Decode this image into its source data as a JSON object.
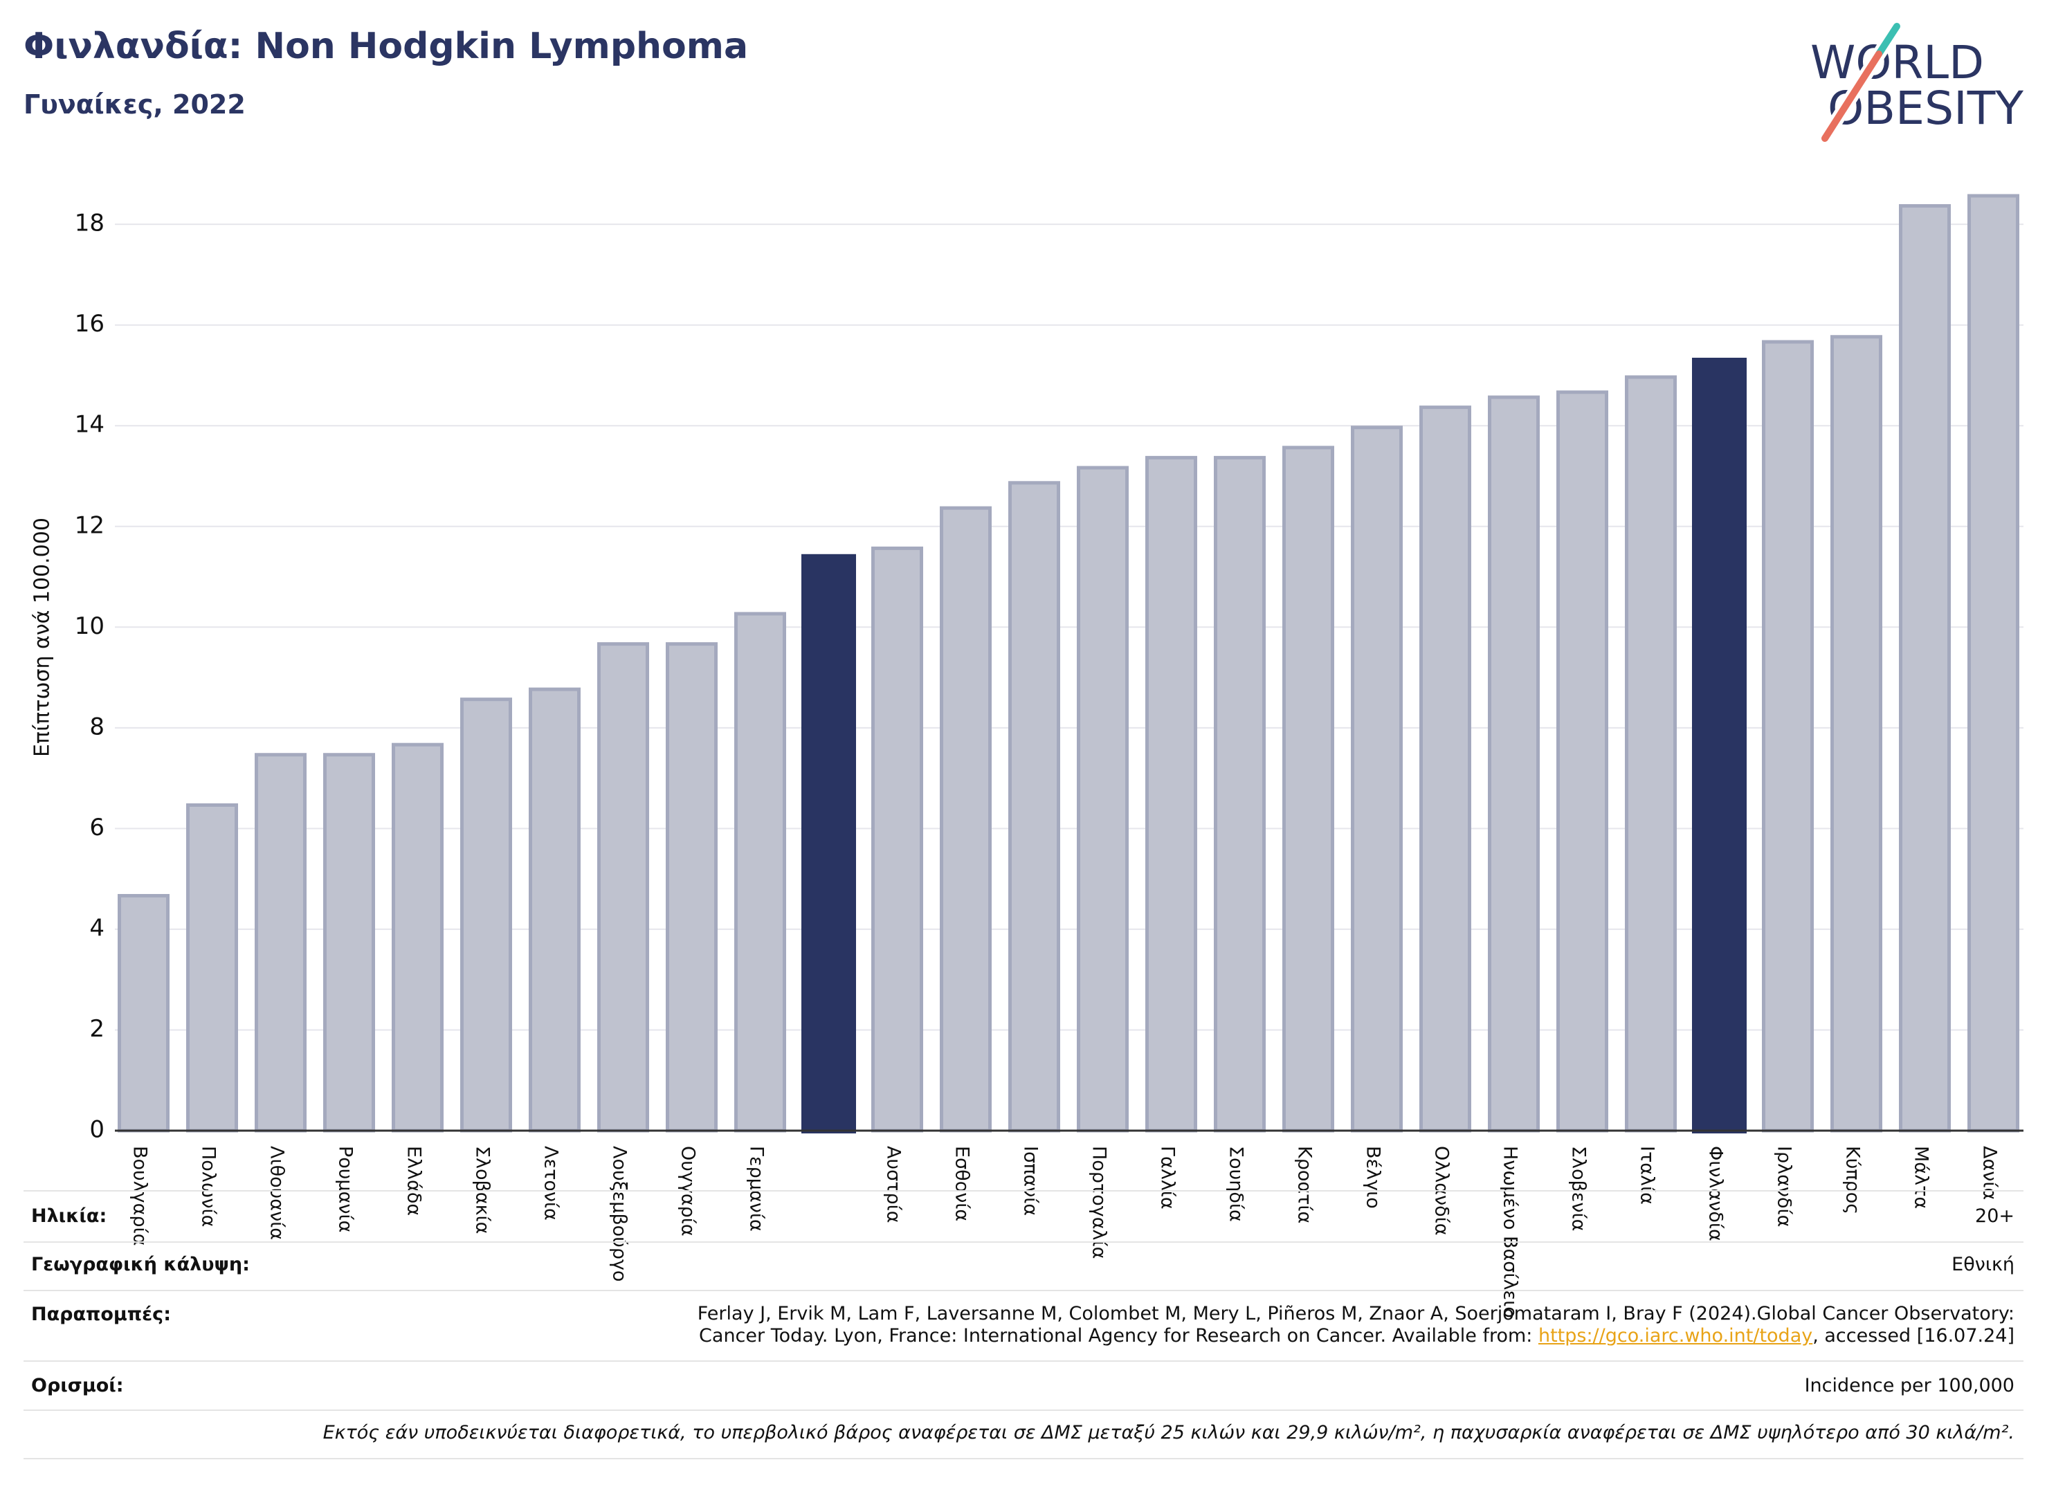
{
  "logo": {
    "line1": "WORLD",
    "line2": "OBESITY"
  },
  "colors": {
    "title": "#2b3563",
    "bar": "#bfc2cf",
    "bar_border": "#a4a9be",
    "highlight": "#293462",
    "grid": "#e6e6ec",
    "axis": "#333333",
    "link": "#e8a317",
    "logo_text": "#2b3563",
    "logo_teal": "#3bbfb2",
    "logo_coral": "#e8705e"
  },
  "chart_data": {
    "type": "bar",
    "title": "Φινλανδία: Non Hodgkin Lymphoma",
    "subtitle": "Γυναίκες, 2022",
    "ylabel": "Επίπτωση ανά 100.000",
    "ylim": [
      0,
      19.5
    ],
    "yticks": [
      0,
      2,
      4,
      6,
      8,
      10,
      12,
      14,
      16,
      18
    ],
    "grid": "horizontal",
    "categories": [
      "Βουλγαρία",
      "Πολωνία",
      "Λιθουανία",
      "Ρουμανία",
      "Ελλάδα",
      "Σλοβακία",
      "Λετονία",
      "Λουξεμβούργο",
      "Ουγγαρία",
      "Γερμανία",
      "",
      "Αυστρία",
      "Εσθονία",
      "Ισπανία",
      "Πορτογαλία",
      "Γαλλία",
      "Σουηδία",
      "Κροατία",
      "Βέλγιο",
      "Ολλανδία",
      "Ηνωμένο Βασίλειο",
      "Σλοβενία",
      "Ιταλία",
      "Φινλανδία",
      "Ιρλανδία",
      "Κύπρος",
      "Μάλτα",
      "Δανία"
    ],
    "values": [
      4.7,
      6.5,
      7.5,
      7.5,
      7.7,
      8.6,
      8.8,
      9.7,
      9.7,
      10.3,
      11.45,
      11.6,
      12.4,
      12.9,
      13.2,
      13.4,
      13.4,
      13.6,
      14.0,
      14.4,
      14.6,
      14.7,
      15.0,
      15.35,
      15.7,
      15.8,
      18.4,
      18.6
    ],
    "highlight_indices": [
      10,
      23
    ]
  },
  "table": {
    "age": {
      "label": "Ηλικία:",
      "value": "20+"
    },
    "coverage": {
      "label": "Γεωγραφική κάλυψη:",
      "value": "Εθνική"
    },
    "references": {
      "label": "Παραπομπές:",
      "line1": "Ferlay J, Ervik M, Lam F, Laversanne M, Colombet M, Mery L, Piñeros M, Znaor A, Soerjomataram I, Bray F (2024).Global Cancer Observatory:",
      "line2_before": "Cancer Today. Lyon, France: International Agency for Research on Cancer. Available from: ",
      "link": "https://gco.iarc.who.int/today",
      "line2_after": ", accessed [16.07.24]"
    },
    "definitions": {
      "label": "Ορισμοί:",
      "value": "Incidence per 100,000"
    },
    "footnote": "Εκτός εάν υποδεικνύεται διαφορετικά, το υπερβολικό βάρος αναφέρεται σε ΔΜΣ μεταξύ 25 κιλών και 29,9 κιλών/m², η παχυσαρκία αναφέρεται σε ΔΜΣ υψηλότερο από 30 κιλά/m²."
  }
}
